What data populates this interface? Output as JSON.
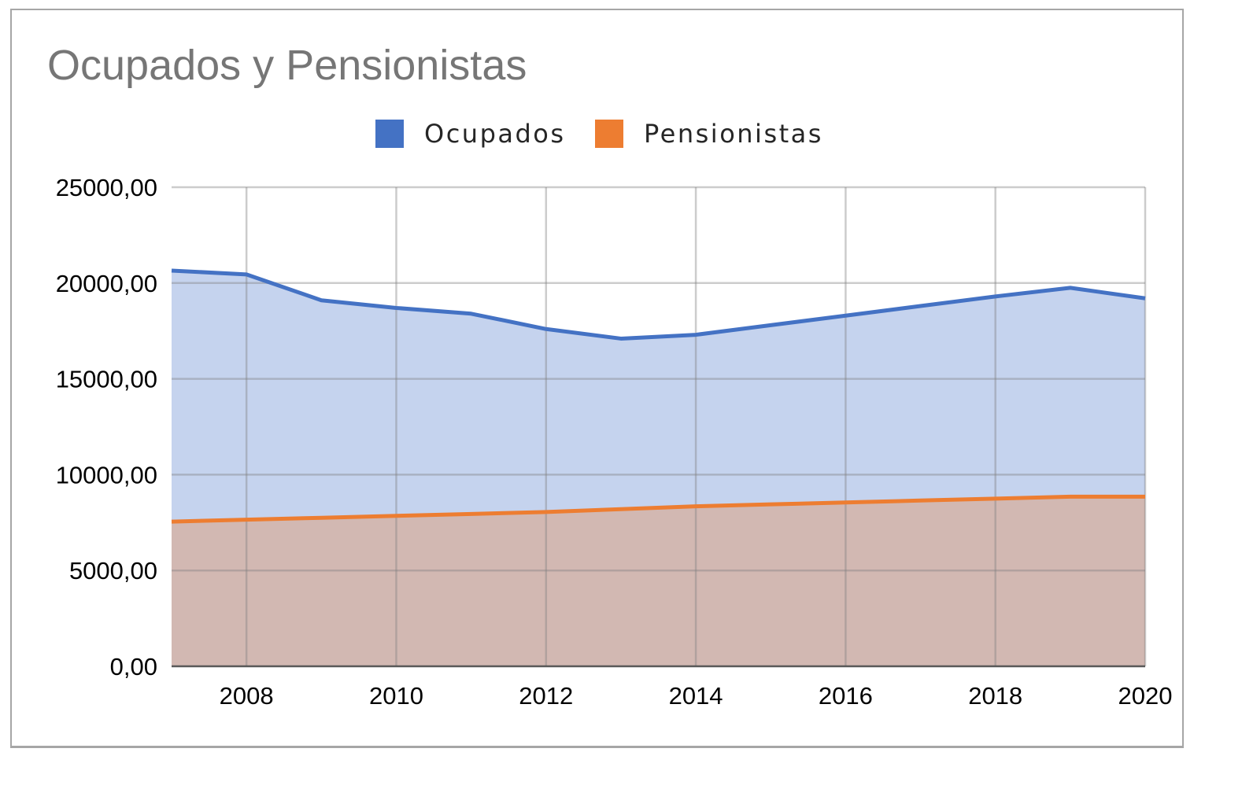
{
  "chart_data": {
    "type": "area",
    "title": "Ocupados y Pensionistas",
    "xlabel": "",
    "ylabel": "",
    "x": [
      2007,
      2008,
      2009,
      2010,
      2011,
      2012,
      2013,
      2014,
      2015,
      2016,
      2017,
      2018,
      2019,
      2020
    ],
    "x_tick_labels": [
      "2008",
      "2010",
      "2012",
      "2014",
      "2016",
      "2018",
      "2020"
    ],
    "y_tick_labels": [
      "0,00",
      "5000,00",
      "10000,00",
      "15000,00",
      "20000,00",
      "25000,00"
    ],
    "xlim": [
      2007,
      2020
    ],
    "ylim": [
      0,
      25000
    ],
    "grid": true,
    "legend_position": "top",
    "series": [
      {
        "name": "Ocupados",
        "color": "#4472c4",
        "fill": "#c5d3ee",
        "values": [
          20650,
          20450,
          19100,
          18700,
          18400,
          17600,
          17100,
          17300,
          17800,
          18300,
          18800,
          19300,
          19750,
          19200
        ]
      },
      {
        "name": "Pensionistas",
        "color": "#ed7d31",
        "fill": "#d2b8b2",
        "values": [
          7550,
          7650,
          7750,
          7850,
          7950,
          8050,
          8200,
          8350,
          8450,
          8550,
          8650,
          8750,
          8850,
          8850
        ]
      }
    ]
  }
}
